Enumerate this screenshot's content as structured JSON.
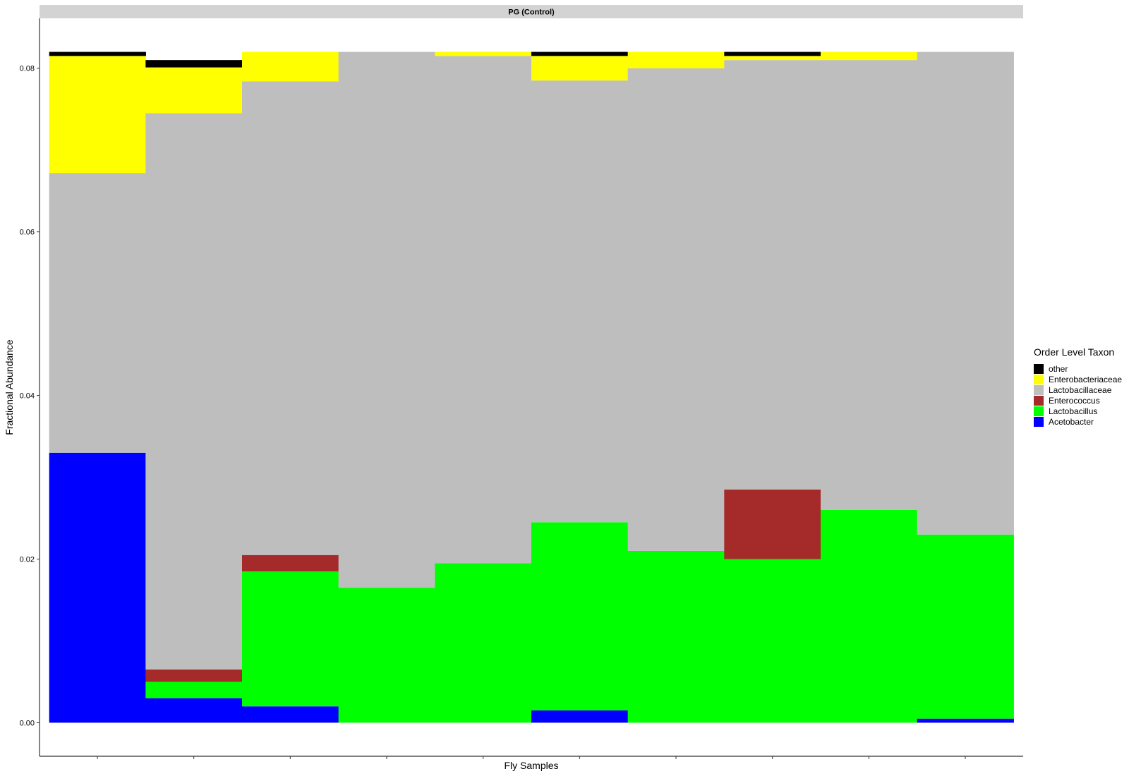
{
  "chart_data": {
    "type": "bar",
    "stacked": true,
    "facet_title": "PG (Control)",
    "xlabel": "Fly Samples",
    "ylabel": "Fractional Abundance",
    "ylim": [
      -0.0041,
      0.0861
    ],
    "yticks": [
      0.0,
      0.02,
      0.04,
      0.06,
      0.08
    ],
    "ytick_labels": [
      "0.00",
      "0.02",
      "0.04",
      "0.06",
      "0.08"
    ],
    "x_tick_labels_shown": false,
    "sample_count": 10,
    "grid": false,
    "legend_position": "right",
    "legend_title": "Order Level Taxon",
    "legend_order": [
      "other",
      "Enterobacteriaceae",
      "Lactobacillaceae",
      "Enterococcus",
      "Lactobacillus",
      "Acetobacter"
    ],
    "stack_order_bottom_to_top": [
      "Acetobacter",
      "Lactobacillus",
      "Enterococcus",
      "Lactobacillaceae",
      "Enterobacteriaceae",
      "other"
    ],
    "colors": {
      "other": "#000000",
      "Enterobacteriaceae": "#FFFF00",
      "Lactobacillaceae": "#BEBEBE",
      "Enterococcus": "#A52A2A",
      "Lactobacillus": "#00FF00",
      "Acetobacter": "#0000FF"
    },
    "series": [
      {
        "name": "Acetobacter",
        "values": [
          0.033,
          0.003,
          0.002,
          0.0,
          0.0,
          0.0015,
          0.0,
          0.0,
          0.0,
          0.0005
        ]
      },
      {
        "name": "Lactobacillus",
        "values": [
          0.0,
          0.002,
          0.0165,
          0.0165,
          0.0195,
          0.023,
          0.021,
          0.02,
          0.026,
          0.0225
        ]
      },
      {
        "name": "Enterococcus",
        "values": [
          0.0,
          0.0015,
          0.002,
          0.0,
          0.0,
          0.0,
          0.0,
          0.0085,
          0.0,
          0.0
        ]
      },
      {
        "name": "Lactobacillaceae",
        "values": [
          0.0342,
          0.068,
          0.0579,
          0.0655,
          0.062,
          0.054,
          0.059,
          0.0525,
          0.055,
          0.059
        ]
      },
      {
        "name": "Enterobacteriaceae",
        "values": [
          0.0143,
          0.0056,
          0.0036,
          0.0,
          0.0005,
          0.003,
          0.002,
          0.0005,
          0.001,
          0.0
        ]
      },
      {
        "name": "other",
        "values": [
          0.0005,
          0.0009,
          0.0,
          0.0,
          0.0,
          0.0005,
          0.0,
          0.0005,
          0.0,
          0.0
        ]
      }
    ]
  }
}
